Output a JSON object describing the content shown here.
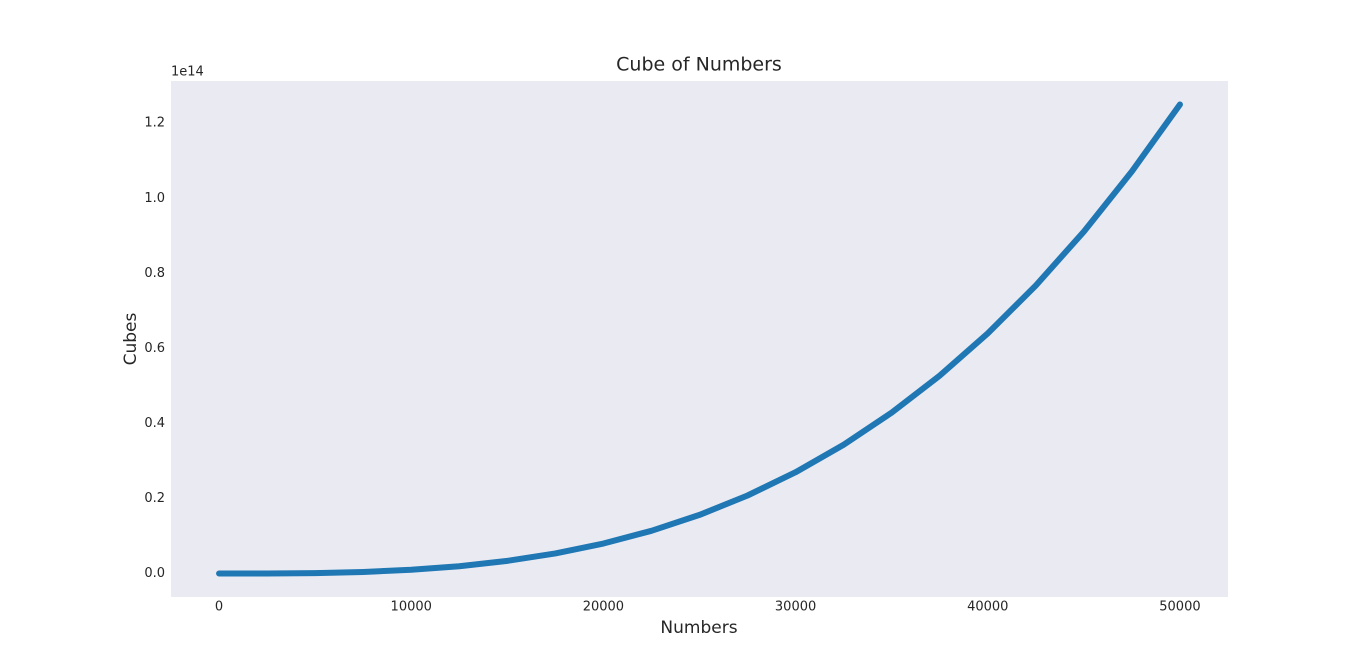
{
  "chart_data": {
    "type": "line",
    "title": "Cube of Numbers",
    "x_label": "Numbers",
    "y_label": "Cubes",
    "y_offset_label": "1e14",
    "x": [
      0,
      2500,
      5000,
      7500,
      10000,
      12500,
      15000,
      17500,
      20000,
      22500,
      25000,
      27500,
      30000,
      32500,
      35000,
      37500,
      40000,
      42500,
      45000,
      47500,
      50000
    ],
    "series": [
      {
        "color": "#1f77b4",
        "values": [
          0,
          0.00015625,
          0.00125,
          0.00421875,
          0.01,
          0.01953125,
          0.03375,
          0.05359375,
          0.08,
          0.11390625,
          0.15625,
          0.20796875,
          0.27,
          0.34328125,
          0.42875,
          0.52734375,
          0.64,
          0.76765625,
          0.91125,
          1.07171875,
          1.25
        ]
      }
    ],
    "xlim": [
      -2500,
      52500
    ],
    "xticks": [
      0,
      10000,
      20000,
      30000,
      40000,
      50000
    ],
    "ylim": [
      -0.0625,
      1.3125
    ],
    "yticks": [
      {
        "value": 0,
        "label": "0.0"
      },
      0.2,
      0.4,
      0.6,
      0.8,
      {
        "value": 1,
        "label": "1.0"
      },
      1.2
    ],
    "grid": false,
    "background": "#eaeaf2"
  }
}
